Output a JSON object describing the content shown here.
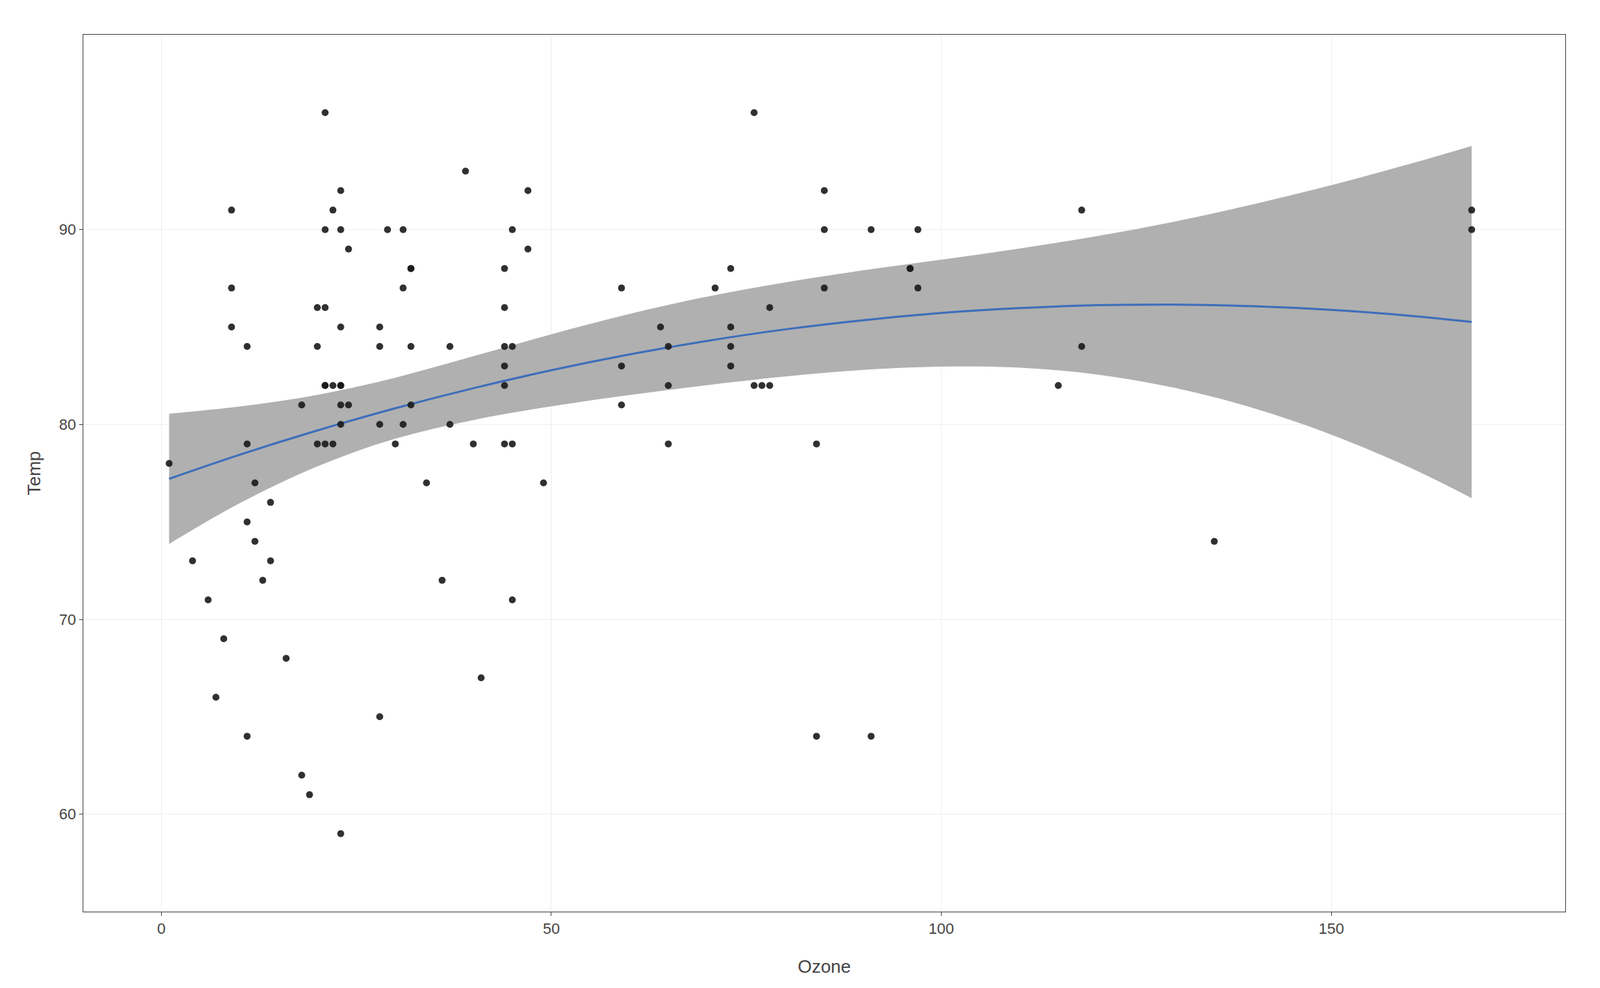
{
  "chart_data": {
    "type": "scatter",
    "xlabel": "Ozone",
    "ylabel": "Temp",
    "xlim": [
      -10,
      180
    ],
    "ylim": [
      55,
      100
    ],
    "xticks": [
      0,
      50,
      100,
      150
    ],
    "yticks": [
      60,
      70,
      80,
      90
    ],
    "grid": true,
    "series": [
      {
        "type": "band",
        "color": "#b0b0b0",
        "x": [
          1,
          10,
          20,
          30,
          40,
          50,
          60,
          70,
          80,
          90,
          100,
          110,
          120,
          130,
          140,
          150,
          160,
          168
        ],
        "lower": [
          73.87,
          75.95,
          77.85,
          79.27,
          80.23,
          80.93,
          81.51,
          82.02,
          82.46,
          82.8,
          82.97,
          82.92,
          82.56,
          81.87,
          80.84,
          79.48,
          77.8,
          76.22
        ],
        "upper": [
          80.55,
          80.92,
          81.52,
          82.4,
          83.5,
          84.63,
          85.67,
          86.56,
          87.29,
          87.91,
          88.46,
          89.03,
          89.67,
          90.42,
          91.3,
          92.28,
          93.36,
          94.29
        ]
      },
      {
        "type": "line",
        "color": "#3d6eba",
        "x": [
          1,
          10,
          20,
          30,
          40,
          50,
          60,
          70,
          80,
          90,
          100,
          110,
          120,
          130,
          140,
          150,
          160,
          168
        ],
        "values": [
          77.21,
          78.44,
          79.69,
          80.83,
          81.86,
          82.78,
          83.59,
          84.29,
          84.88,
          85.35,
          85.72,
          85.97,
          86.12,
          86.15,
          86.07,
          85.88,
          85.58,
          85.26
        ]
      },
      {
        "type": "scatter",
        "color": "#1a1a1a",
        "x": [
          41,
          36,
          12,
          18,
          28,
          23,
          19,
          8,
          7,
          16,
          11,
          14,
          18,
          14,
          34,
          6,
          30,
          11,
          1,
          11,
          4,
          32,
          23,
          45,
          115,
          37,
          29,
          71,
          39,
          23,
          21,
          37,
          20,
          12,
          13,
          135,
          49,
          32,
          64,
          40,
          77,
          97,
          97,
          85,
          11,
          44,
          28,
          65,
          22,
          59,
          23,
          31,
          44,
          21,
          9,
          45,
          168,
          73,
          76,
          118,
          84,
          85,
          96,
          78,
          73,
          91,
          47,
          32,
          20,
          23,
          21,
          24,
          44,
          28,
          65,
          22,
          59,
          23,
          31,
          44,
          21,
          9,
          45,
          168,
          73,
          76,
          118,
          84,
          85,
          96,
          78,
          73,
          91,
          47,
          32,
          20,
          23,
          21,
          24,
          44,
          28,
          65,
          22,
          59,
          23,
          31,
          44,
          21,
          9,
          45
        ],
        "values": [
          67,
          72,
          74,
          62,
          65,
          59,
          61,
          69,
          66,
          68,
          64,
          73,
          81,
          76,
          77,
          71,
          79,
          75,
          78,
          79,
          73,
          81,
          80,
          71,
          82,
          84,
          90,
          87,
          93,
          92,
          82,
          80,
          79,
          77,
          72,
          74,
          77,
          84,
          85,
          79,
          82,
          87,
          90,
          87,
          84,
          86,
          85,
          84,
          91,
          83,
          81,
          90,
          83,
          96,
          91,
          79,
          90,
          88,
          82,
          84,
          64,
          92,
          88,
          86,
          85,
          90,
          89,
          88,
          84,
          82,
          79,
          81,
          82,
          80,
          79,
          82,
          87,
          90,
          87,
          84,
          86,
          85,
          84,
          91,
          83,
          96,
          91,
          79,
          90,
          88,
          82,
          84,
          64,
          92,
          88,
          86,
          85,
          90,
          89,
          88,
          84,
          82,
          79,
          81,
          82,
          80,
          79,
          82,
          87,
          90
        ]
      }
    ]
  }
}
